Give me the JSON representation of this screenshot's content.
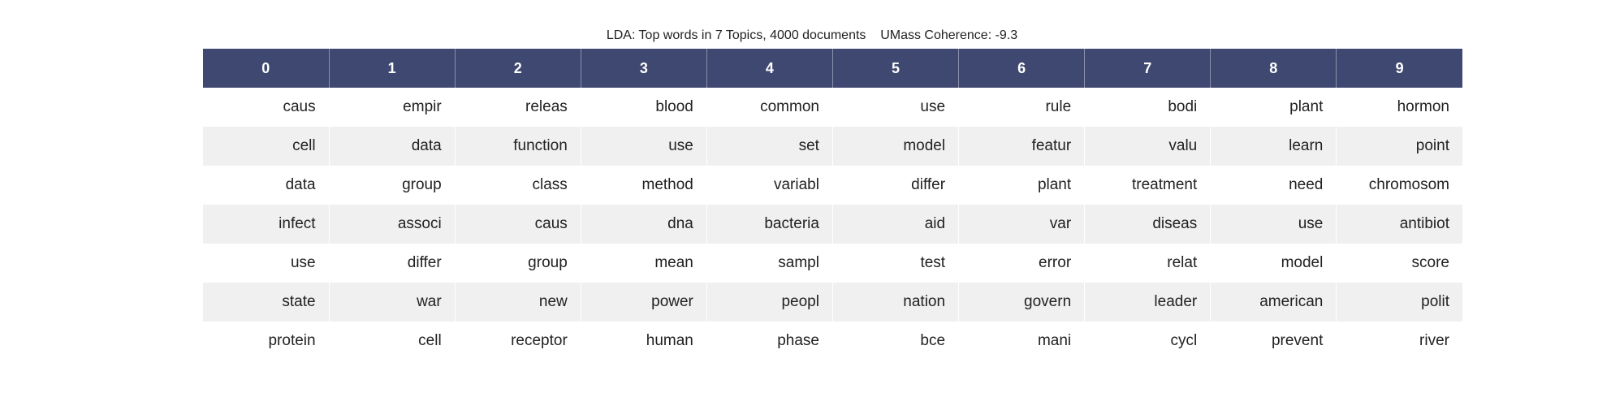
{
  "chart_data": {
    "type": "table",
    "title": "LDA: Top words in 7 Topics, 4000 documents    UMass Coherence: -9.3",
    "columns": [
      "0",
      "1",
      "2",
      "3",
      "4",
      "5",
      "6",
      "7",
      "8",
      "9"
    ],
    "rows": [
      [
        "caus",
        "empir",
        "releas",
        "blood",
        "common",
        "use",
        "rule",
        "bodi",
        "plant",
        "hormon"
      ],
      [
        "cell",
        "data",
        "function",
        "use",
        "set",
        "model",
        "featur",
        "valu",
        "learn",
        "point"
      ],
      [
        "data",
        "group",
        "class",
        "method",
        "variabl",
        "differ",
        "plant",
        "treatment",
        "need",
        "chromosom"
      ],
      [
        "infect",
        "associ",
        "caus",
        "dna",
        "bacteria",
        "aid",
        "var",
        "diseas",
        "use",
        "antibiot"
      ],
      [
        "use",
        "differ",
        "group",
        "mean",
        "sampl",
        "test",
        "error",
        "relat",
        "model",
        "score"
      ],
      [
        "state",
        "war",
        "new",
        "power",
        "peopl",
        "nation",
        "govern",
        "leader",
        "american",
        "polit"
      ],
      [
        "protein",
        "cell",
        "receptor",
        "human",
        "phase",
        "bce",
        "mani",
        "cycl",
        "prevent",
        "river"
      ]
    ]
  },
  "colors": {
    "header_bg": "#3f4870",
    "header_text": "#ffffff",
    "row_alt_bg": "#f0f0f0",
    "row_bg": "#ffffff"
  }
}
